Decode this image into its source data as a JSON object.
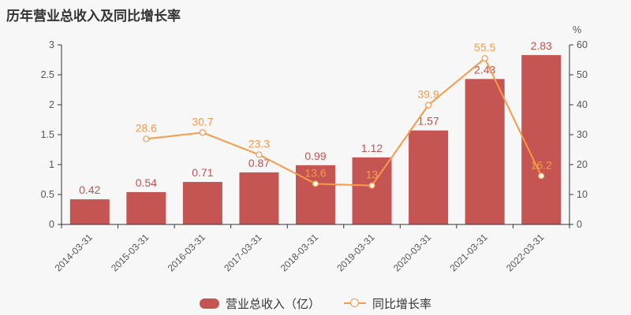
{
  "page": {
    "background": "#f7f7f7"
  },
  "header": {
    "title": "历年营业总收入及同比增长率"
  },
  "legend": {
    "items": [
      {
        "label": "营业总收入（亿）",
        "marker": "bar-swatch",
        "color": "#c45552"
      },
      {
        "label": "同比增长率",
        "marker": "line-circle-swatch",
        "color": "#f79a49"
      }
    ]
  },
  "colors": {
    "bar": "#c45552",
    "bar_label": "#c25450",
    "line": "#f79a49",
    "line_label": "#f79a49",
    "marker_fill": "#ffffff",
    "axis": "#333333",
    "tick_label": "#555555",
    "x_label": "#555555",
    "title": "#333333",
    "background": "#f7f7f7"
  },
  "chart_data": {
    "type": "bar+line combo",
    "title": "历年营业总收入及同比增长率",
    "categories": [
      "2014-03-31",
      "2015-03-31",
      "2016-03-31",
      "2017-03-31",
      "2018-03-31",
      "2019-03-31",
      "2020-03-31",
      "2021-03-31",
      "2022-03-31"
    ],
    "series": [
      {
        "name": "营业总收入（亿）",
        "type": "bar",
        "y_axis": "left",
        "values": [
          0.42,
          0.54,
          0.71,
          0.87,
          0.99,
          1.12,
          1.57,
          2.43,
          2.83
        ]
      },
      {
        "name": "同比增长率",
        "type": "line",
        "y_axis": "right",
        "values": [
          null,
          28.6,
          30.7,
          23.3,
          13.6,
          13,
          39.9,
          55.5,
          16.2
        ]
      }
    ],
    "left_axis": {
      "min": 0,
      "max": 3,
      "ticks": [
        0,
        0.5,
        1,
        1.5,
        2,
        2.5,
        3
      ]
    },
    "right_axis": {
      "min": 0,
      "max": 60,
      "ticks": [
        0,
        10,
        20,
        30,
        40,
        50,
        60
      ],
      "unit": "%"
    },
    "grid": false,
    "x_label_rotation": -45,
    "legend_position": "bottom"
  }
}
